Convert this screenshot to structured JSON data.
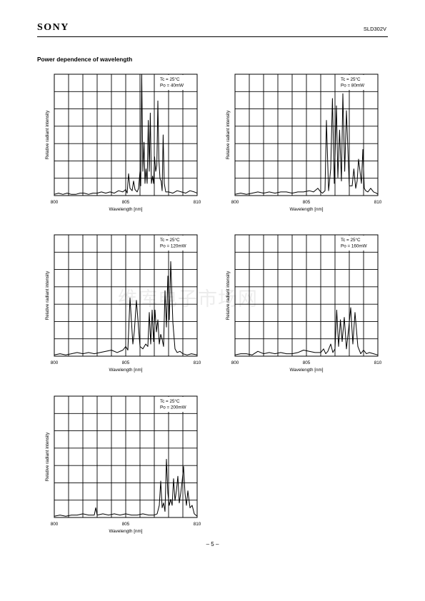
{
  "header": {
    "brand": "SONY",
    "part_number": "SLD302V"
  },
  "section_title": "Power dependence of wavelength",
  "page_number": "– 5 –",
  "watermark": "维库电子市场网",
  "chart_data": [
    {
      "type": "line",
      "annotation": [
        "Tc = 25°C",
        "Po = 40mW"
      ],
      "xlabel": "Wavelength [nm]",
      "ylabel": "Relative radiant intensity",
      "xlim": [
        800,
        810
      ],
      "ylim": [
        0,
        1
      ],
      "x_ticks": [
        800,
        805,
        810
      ],
      "grid": true,
      "x": [
        800.0,
        800.3,
        800.6,
        800.9,
        801.2,
        801.5,
        801.8,
        802.1,
        802.4,
        802.7,
        803.0,
        803.3,
        803.6,
        803.9,
        804.2,
        804.5,
        804.8,
        805.0,
        805.1,
        805.2,
        805.3,
        805.45,
        805.55,
        805.65,
        805.8,
        805.9,
        806.0,
        806.05,
        806.12,
        806.2,
        806.28,
        806.35,
        806.42,
        806.5,
        806.58,
        806.65,
        806.72,
        806.8,
        806.88,
        806.95,
        807.02,
        807.1,
        807.18,
        807.25,
        807.32,
        807.4,
        807.48,
        807.55,
        807.62,
        807.7,
        807.8,
        808.0,
        808.3,
        808.6,
        808.9,
        809.2,
        809.5,
        809.8,
        810.0
      ],
      "y": [
        0.01,
        0.02,
        0.01,
        0.02,
        0.01,
        0.01,
        0.02,
        0.02,
        0.01,
        0.02,
        0.02,
        0.03,
        0.02,
        0.03,
        0.02,
        0.04,
        0.03,
        0.05,
        0.02,
        0.18,
        0.06,
        0.04,
        0.12,
        0.05,
        0.03,
        0.06,
        0.2,
        0.08,
        1.0,
        0.2,
        0.44,
        0.1,
        0.22,
        0.1,
        0.62,
        0.2,
        0.68,
        0.1,
        0.16,
        0.1,
        0.32,
        0.2,
        0.25,
        0.78,
        0.3,
        0.14,
        0.12,
        0.04,
        0.5,
        0.1,
        0.03,
        0.03,
        0.02,
        0.04,
        0.03,
        0.02,
        0.04,
        0.03,
        0.02
      ]
    },
    {
      "type": "line",
      "annotation": [
        "Tc = 25°C",
        "Po = 80mW"
      ],
      "xlabel": "Wavelength [nm]",
      "ylabel": "Relative radiant intensity",
      "xlim": [
        800,
        810
      ],
      "ylim": [
        0,
        1
      ],
      "x_ticks": [
        800,
        805,
        810
      ],
      "grid": true,
      "x": [
        800.0,
        800.4,
        800.8,
        801.2,
        801.6,
        802.0,
        802.4,
        802.8,
        803.2,
        803.6,
        804.0,
        804.4,
        804.8,
        805.2,
        805.5,
        805.8,
        806.0,
        806.12,
        806.3,
        806.4,
        806.55,
        806.7,
        806.82,
        806.95,
        807.1,
        807.2,
        807.32,
        807.45,
        807.55,
        807.68,
        807.8,
        808.0,
        808.2,
        808.32,
        808.45,
        808.55,
        808.65,
        808.75,
        808.85,
        808.95,
        809.05,
        809.15,
        809.3,
        809.5,
        809.7,
        809.9,
        810.0
      ],
      "y": [
        0.01,
        0.02,
        0.01,
        0.02,
        0.03,
        0.02,
        0.03,
        0.02,
        0.03,
        0.03,
        0.02,
        0.03,
        0.03,
        0.04,
        0.03,
        0.06,
        0.03,
        0.02,
        0.04,
        0.62,
        0.04,
        0.22,
        0.8,
        0.1,
        0.74,
        0.15,
        0.54,
        0.12,
        0.84,
        0.2,
        0.7,
        0.08,
        0.08,
        0.22,
        0.06,
        0.12,
        0.3,
        0.2,
        0.1,
        0.38,
        0.06,
        0.04,
        0.03,
        0.06,
        0.03,
        0.02,
        0.01
      ]
    },
    {
      "type": "line",
      "annotation": [
        "Tc = 25°C",
        "Po = 120mW"
      ],
      "xlabel": "Wavelength [nm]",
      "ylabel": "Relative radiant intensity",
      "xlim": [
        800,
        810
      ],
      "ylim": [
        0,
        1
      ],
      "x_ticks": [
        800,
        805,
        810
      ],
      "grid": true,
      "x": [
        800.0,
        800.4,
        800.8,
        801.2,
        801.6,
        802.0,
        802.4,
        802.8,
        803.2,
        803.6,
        804.0,
        804.4,
        804.8,
        805.0,
        805.15,
        805.3,
        805.5,
        805.6,
        805.75,
        806.0,
        806.2,
        806.4,
        806.55,
        806.65,
        806.75,
        806.85,
        806.95,
        807.05,
        807.15,
        807.25,
        807.35,
        807.45,
        807.55,
        807.65,
        807.75,
        807.85,
        807.95,
        808.05,
        808.15,
        808.3,
        808.45,
        808.6,
        808.8,
        809.0,
        809.3,
        809.6,
        810.0
      ],
      "y": [
        0.01,
        0.02,
        0.01,
        0.02,
        0.03,
        0.02,
        0.03,
        0.02,
        0.03,
        0.04,
        0.05,
        0.03,
        0.05,
        0.08,
        0.05,
        0.48,
        0.1,
        0.2,
        0.46,
        0.08,
        0.06,
        0.1,
        0.08,
        0.36,
        0.1,
        0.38,
        0.12,
        0.38,
        0.2,
        0.3,
        0.1,
        0.18,
        0.14,
        0.08,
        0.54,
        0.24,
        0.66,
        0.3,
        0.78,
        0.28,
        0.06,
        0.03,
        0.04,
        0.02,
        0.01,
        0.02,
        0.01
      ]
    },
    {
      "type": "line",
      "annotation": [
        "Tc = 25°C",
        "Po = 160mW"
      ],
      "xlabel": "Wavelength [nm]",
      "ylabel": "Relative radiant intensity",
      "xlim": [
        800,
        810
      ],
      "ylim": [
        0,
        1
      ],
      "x_ticks": [
        800,
        805,
        810
      ],
      "grid": true,
      "x": [
        800.0,
        800.4,
        800.8,
        801.2,
        801.6,
        802.0,
        802.4,
        802.8,
        803.2,
        803.6,
        804.0,
        804.4,
        804.8,
        805.2,
        805.6,
        806.0,
        806.2,
        806.35,
        806.5,
        806.7,
        806.85,
        807.0,
        807.12,
        807.25,
        807.38,
        807.5,
        807.65,
        807.8,
        807.95,
        808.1,
        808.25,
        808.4,
        808.6,
        808.8,
        809.0,
        809.2,
        809.4,
        809.7,
        810.0
      ],
      "y": [
        0.01,
        0.02,
        0.02,
        0.01,
        0.04,
        0.02,
        0.03,
        0.02,
        0.03,
        0.02,
        0.02,
        0.03,
        0.05,
        0.04,
        0.03,
        0.03,
        0.06,
        0.02,
        0.04,
        0.1,
        0.03,
        0.06,
        0.38,
        0.08,
        0.3,
        0.12,
        0.32,
        0.06,
        0.22,
        0.4,
        0.1,
        0.36,
        0.08,
        0.02,
        0.05,
        0.02,
        0.03,
        0.02,
        0.01
      ]
    },
    {
      "type": "line",
      "annotation": [
        "Tc = 25°C",
        "Po = 200mW"
      ],
      "xlabel": "Wavelength [nm]",
      "ylabel": "Relative radiant intensity",
      "xlim": [
        800,
        810
      ],
      "ylim": [
        0,
        1
      ],
      "x_ticks": [
        800,
        805,
        810
      ],
      "grid": true,
      "x": [
        800.0,
        800.4,
        800.8,
        801.2,
        801.6,
        802.0,
        802.4,
        802.8,
        802.9,
        803.0,
        803.4,
        803.8,
        804.2,
        804.6,
        805.0,
        805.4,
        805.8,
        806.2,
        806.6,
        807.0,
        807.2,
        807.35,
        807.45,
        807.55,
        807.65,
        807.75,
        807.85,
        807.95,
        808.05,
        808.15,
        808.25,
        808.35,
        808.45,
        808.55,
        808.65,
        808.75,
        808.85,
        808.95,
        809.05,
        809.15,
        809.25,
        809.35,
        809.5,
        809.65,
        809.8,
        810.0
      ],
      "y": [
        0.01,
        0.02,
        0.01,
        0.02,
        0.02,
        0.03,
        0.02,
        0.02,
        0.08,
        0.02,
        0.03,
        0.02,
        0.03,
        0.02,
        0.03,
        0.02,
        0.02,
        0.03,
        0.02,
        0.02,
        0.03,
        0.1,
        0.3,
        0.08,
        0.12,
        0.05,
        0.48,
        0.2,
        0.1,
        0.15,
        0.1,
        0.32,
        0.14,
        0.22,
        0.34,
        0.12,
        0.2,
        0.3,
        0.42,
        0.2,
        0.1,
        0.22,
        0.08,
        0.1,
        0.03,
        0.01
      ]
    }
  ]
}
